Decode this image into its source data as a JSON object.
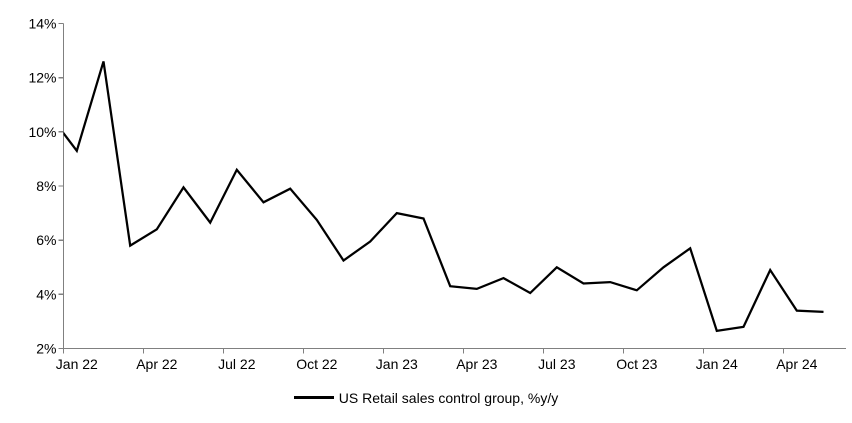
{
  "chart_data": {
    "type": "line",
    "title": "",
    "legend": {
      "label": "US Retail sales control group, %y/y",
      "position": "bottom-center"
    },
    "yaxis": {
      "min": 2,
      "max": 14,
      "step": 2,
      "suffix": "%",
      "tick_labels": [
        "2%",
        "4%",
        "6%",
        "8%",
        "10%",
        "12%",
        "14%"
      ]
    },
    "xaxis": {
      "tick_labels": [
        "Jan 22",
        "Apr 22",
        "Jul 22",
        "Oct 22",
        "Jan 23",
        "Apr 23",
        "Jul 23",
        "Oct 23",
        "Jan 24",
        "Apr 24"
      ],
      "months_per_tick": 3
    },
    "series": [
      {
        "name": "US Retail sales control group, %y/y",
        "color": "#000000",
        "first_point_clipped_at_left_axis": true,
        "months": [
          "Dec 21",
          "Jan 22",
          "Feb 22",
          "Mar 22",
          "Apr 22",
          "May 22",
          "Jun 22",
          "Jul 22",
          "Aug 22",
          "Sep 22",
          "Oct 22",
          "Nov 22",
          "Dec 22",
          "Jan 23",
          "Feb 23",
          "Mar 23",
          "Apr 23",
          "May 23",
          "Jun 23",
          "Jul 23",
          "Aug 23",
          "Sep 23",
          "Oct 23",
          "Nov 23",
          "Dec 23",
          "Jan 24",
          "Feb 24",
          "Mar 24",
          "Apr 24",
          "May 24"
        ],
        "values": [
          10.6,
          9.3,
          12.6,
          5.8,
          6.4,
          7.95,
          6.65,
          8.6,
          7.4,
          7.9,
          6.75,
          5.25,
          5.95,
          7.0,
          6.8,
          4.3,
          4.2,
          4.6,
          4.05,
          5.0,
          4.4,
          4.45,
          4.15,
          5.0,
          5.7,
          2.65,
          2.8,
          4.9,
          3.4,
          3.35
        ]
      }
    ],
    "axis_color": "#808080",
    "text_color": "#000000",
    "grid": false
  }
}
